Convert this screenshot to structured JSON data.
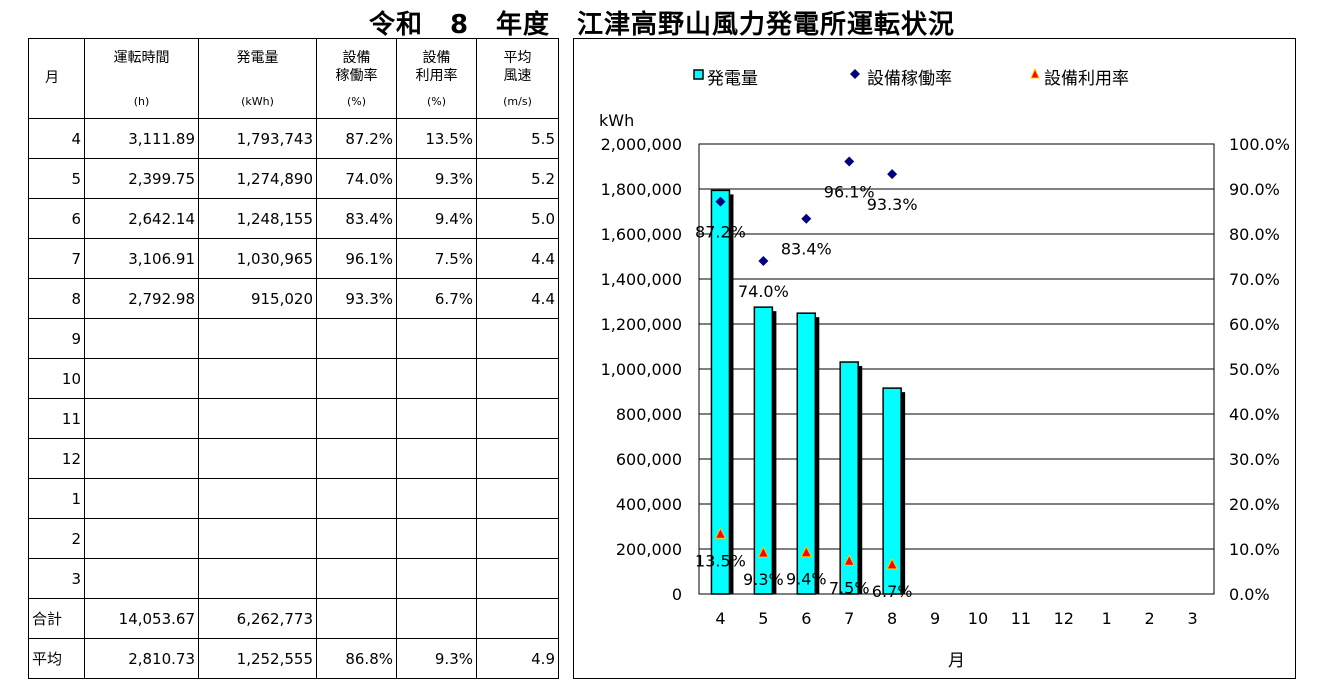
{
  "title": "令和　8　年度　江津高野山風力発電所運転状況",
  "table": {
    "headers": [
      {
        "label": "月",
        "unit": ""
      },
      {
        "label": "運転時間",
        "unit": "(h)"
      },
      {
        "label": "発電量",
        "unit": "(kWh)"
      },
      {
        "label": "設備\n稼働率",
        "unit": "(%)"
      },
      {
        "label": "設備\n利用率",
        "unit": "(%)"
      },
      {
        "label": "平均\n風速",
        "unit": "(m/s)"
      }
    ],
    "rows": [
      [
        "4",
        "3,111.89",
        "1,793,743",
        "87.2%",
        "13.5%",
        "5.5"
      ],
      [
        "5",
        "2,399.75",
        "1,274,890",
        "74.0%",
        "9.3%",
        "5.2"
      ],
      [
        "6",
        "2,642.14",
        "1,248,155",
        "83.4%",
        "9.4%",
        "5.0"
      ],
      [
        "7",
        "3,106.91",
        "1,030,965",
        "96.1%",
        "7.5%",
        "4.4"
      ],
      [
        "8",
        "2,792.98",
        "915,020",
        "93.3%",
        "6.7%",
        "4.4"
      ],
      [
        "9",
        "",
        "",
        "",
        "",
        ""
      ],
      [
        "10",
        "",
        "",
        "",
        "",
        ""
      ],
      [
        "11",
        "",
        "",
        "",
        "",
        ""
      ],
      [
        "12",
        "",
        "",
        "",
        "",
        ""
      ],
      [
        "1",
        "",
        "",
        "",
        "",
        ""
      ],
      [
        "2",
        "",
        "",
        "",
        "",
        ""
      ],
      [
        "3",
        "",
        "",
        "",
        "",
        ""
      ]
    ],
    "total": [
      "合計",
      "14,053.67",
      "6,262,773",
      "",
      "",
      ""
    ],
    "average": [
      "平均",
      "2,810.73",
      "1,252,555",
      "86.8%",
      "9.3%",
      "4.9"
    ]
  },
  "chart_data": {
    "type": "bar",
    "categories": [
      "4",
      "5",
      "6",
      "7",
      "8",
      "9",
      "10",
      "11",
      "12",
      "1",
      "2",
      "3"
    ],
    "xlabel": "月",
    "ylabel": "kWh",
    "ylim": [
      0,
      2000000
    ],
    "y2lim": [
      0,
      100
    ],
    "y_ticks": [
      "0",
      "200,000",
      "400,000",
      "600,000",
      "800,000",
      "1,000,000",
      "1,200,000",
      "1,400,000",
      "1,600,000",
      "1,800,000",
      "2,000,000"
    ],
    "y2_ticks": [
      "0.0%",
      "10.0%",
      "20.0%",
      "30.0%",
      "40.0%",
      "50.0%",
      "60.0%",
      "70.0%",
      "80.0%",
      "90.0%",
      "100.0%"
    ],
    "legend_position": "top",
    "series": [
      {
        "name": "発電量",
        "kind": "bar",
        "axis": "left",
        "color": "#00ffff",
        "values": [
          1793743,
          1274890,
          1248155,
          1030965,
          915020,
          null,
          null,
          null,
          null,
          null,
          null,
          null
        ]
      },
      {
        "name": "設備稼働率",
        "kind": "marker",
        "marker": "diamond",
        "axis": "right",
        "color": "#000080",
        "values": [
          87.2,
          74.0,
          83.4,
          96.1,
          93.3,
          null,
          null,
          null,
          null,
          null,
          null,
          null
        ],
        "labels": [
          "87.2%",
          "74.0%",
          "83.4%",
          "96.1%",
          "93.3%"
        ]
      },
      {
        "name": "設備利用率",
        "kind": "marker",
        "marker": "triangle",
        "axis": "right",
        "color": "#ff0000",
        "values": [
          13.5,
          9.3,
          9.4,
          7.5,
          6.7,
          null,
          null,
          null,
          null,
          null,
          null,
          null
        ],
        "labels": [
          "13.5%",
          "9.3%",
          "9.4%",
          "7.5%",
          "6.7%"
        ]
      }
    ]
  }
}
